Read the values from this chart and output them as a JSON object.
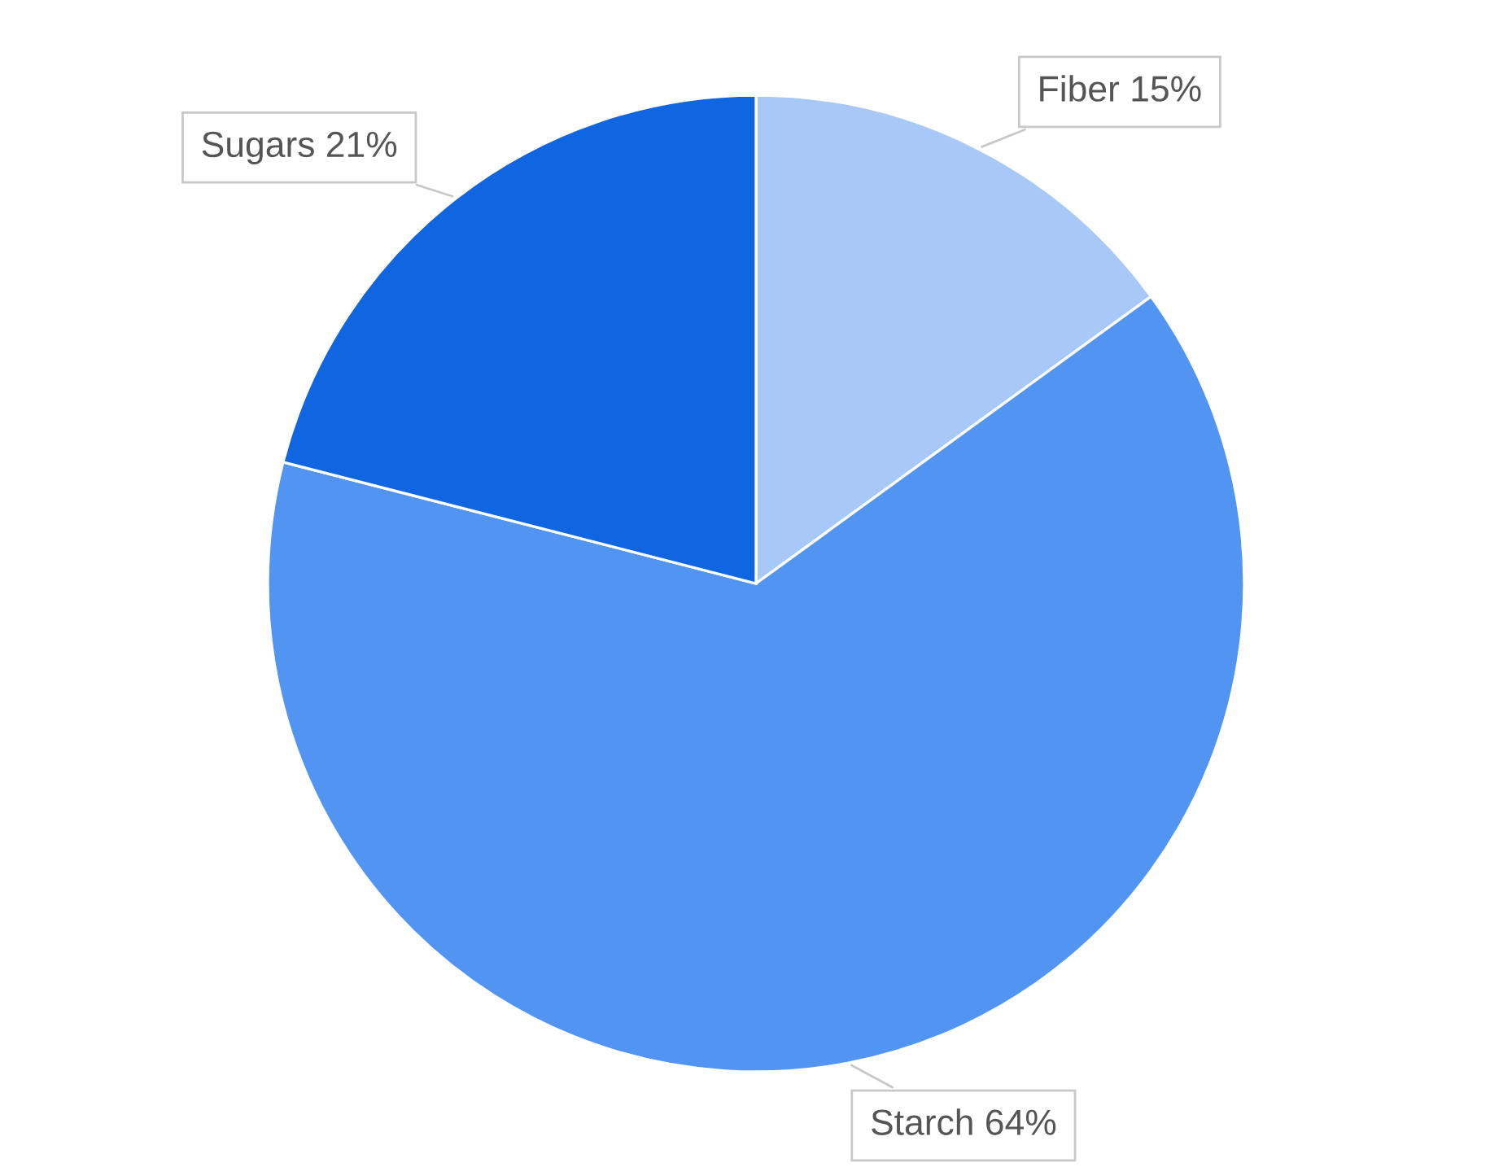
{
  "chart_data": {
    "type": "pie",
    "categories": [
      "Fiber",
      "Starch",
      "Sugars"
    ],
    "values": [
      15,
      64,
      21
    ],
    "colors": [
      "#a8c9f8",
      "#5294f2",
      "#1065e0"
    ],
    "value_labels": [
      "15%",
      "64%",
      "21%"
    ]
  }
}
